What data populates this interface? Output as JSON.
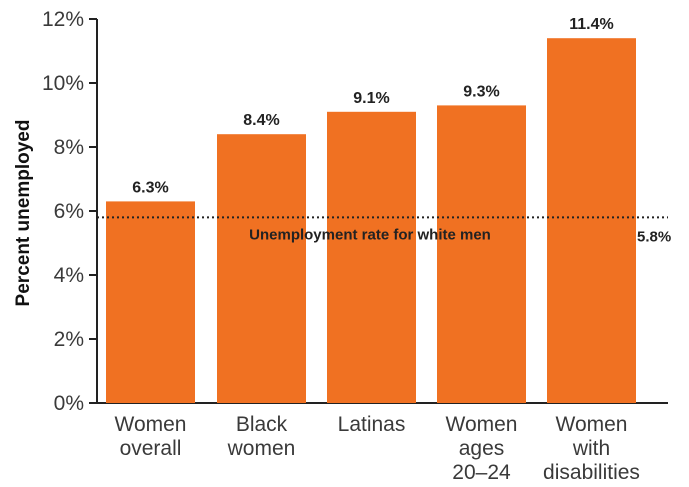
{
  "chart_data": {
    "type": "bar",
    "categories": [
      [
        "Women",
        "overall"
      ],
      [
        "Black",
        "women"
      ],
      [
        "Latinas"
      ],
      [
        "Women",
        "ages",
        "20–24"
      ],
      [
        "Women",
        "with",
        "disabilities"
      ]
    ],
    "values": [
      6.3,
      8.4,
      9.1,
      9.3,
      11.4
    ],
    "value_labels": [
      "6.3%",
      "8.4%",
      "9.1%",
      "9.3%",
      "11.4%"
    ],
    "ylabel": "Percent unemployed",
    "ylim": [
      0,
      12
    ],
    "yticks": [
      0,
      2,
      4,
      6,
      8,
      10,
      12
    ],
    "ytick_labels": [
      "0%",
      "2%",
      "4%",
      "6%",
      "8%",
      "10%",
      "12%"
    ],
    "reference_line": {
      "value": 5.8,
      "label": "Unemployment rate for white men",
      "value_label": "5.8%",
      "style": "dotted"
    },
    "bar_color": "#f07122",
    "grid": false
  }
}
